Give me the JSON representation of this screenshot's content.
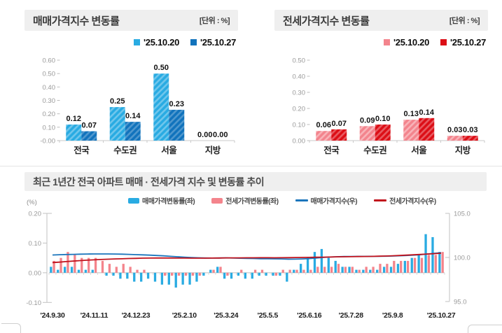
{
  "panels": {
    "sale": {
      "title": "매매가격지수 변동률",
      "unit": "[단위 : %]",
      "legend": [
        "'25.10.20",
        "'25.10.27"
      ]
    },
    "jeonse": {
      "title": "전세가격지수 변동률",
      "unit": "[단위 : %]",
      "legend": [
        "'25.10.20",
        "'25.10.27"
      ]
    },
    "trend": {
      "title": "최근 1년간 전국 아파트 매매 · 전세가격 지수 및 변동률 추이",
      "left_unit": "(%)",
      "legend": [
        "매매가격변동률(좌)",
        "전세가격변동률(좌)",
        "매매가격지수(우)",
        "전세가격지수(우)"
      ]
    }
  },
  "colors": {
    "header_bg": "#EFEFEF",
    "sale_prev": "#29ABE2",
    "sale_prev_hatch": "#6FC6EC",
    "sale_curr": "#1173BC",
    "sale_curr_hatch": "#4E97CE",
    "jeonse_prev": "#F3848D",
    "jeonse_prev_hatch": "#F8B3B8",
    "jeonse_curr": "#DC0E16",
    "jeonse_curr_hatch": "#E85A60",
    "sale_bar": "#29ABE2",
    "jeonse_bar": "#F4848C",
    "sale_line": "#1B75BC",
    "jeonse_line": "#C1121C"
  },
  "chart_data": [
    {
      "type": "bar",
      "title": "매매가격지수 변동률",
      "unit": "[단위 : %]",
      "categories": [
        "전국",
        "수도권",
        "서울",
        "지방"
      ],
      "series": [
        {
          "name": "'25.10.20",
          "values": [
            0.12,
            0.25,
            0.5,
            0.0
          ],
          "color": "#29ABE2",
          "hatch": "#6FC6EC"
        },
        {
          "name": "'25.10.27",
          "values": [
            0.07,
            0.14,
            0.23,
            0.0
          ],
          "color": "#1173BC",
          "hatch": "#4E97CE"
        }
      ],
      "ylim": [
        0,
        0.6
      ],
      "ytick_step": 0.1,
      "grid": false,
      "legend_position": "top-right"
    },
    {
      "type": "bar",
      "title": "전세가격지수 변동률",
      "unit": "[단위 : %]",
      "categories": [
        "전국",
        "수도권",
        "서울",
        "지방"
      ],
      "series": [
        {
          "name": "'25.10.20",
          "values": [
            0.06,
            0.09,
            0.13,
            0.03
          ],
          "color": "#F3848D",
          "hatch": "#F8B3B8"
        },
        {
          "name": "'25.10.27",
          "values": [
            0.07,
            0.1,
            0.14,
            0.03
          ],
          "color": "#DC0E16",
          "hatch": "#E85A60"
        }
      ],
      "ylim": [
        0,
        0.5
      ],
      "ytick_step": 0.1,
      "grid": false,
      "legend_position": "top-right"
    },
    {
      "type": "combo",
      "title": "최근 1년간 전국 아파트 매매 · 전세가격 지수 및 변동률 추이",
      "weeks": 57,
      "x_labels": [
        {
          "week": 0,
          "label": "'24.9.30"
        },
        {
          "week": 6,
          "label": "'24.11.11"
        },
        {
          "week": 12,
          "label": "'24.12.23"
        },
        {
          "week": 19,
          "label": "'25.2.10"
        },
        {
          "week": 25,
          "label": "'25.3.24"
        },
        {
          "week": 31,
          "label": "'25.5.5"
        },
        {
          "week": 37,
          "label": "'25.6.16"
        },
        {
          "week": 43,
          "label": "'25.7.28"
        },
        {
          "week": 49,
          "label": "'25.9.8"
        },
        {
          "week": 56,
          "label": "'25.10.27"
        }
      ],
      "left_axis": {
        "label": "(%)",
        "min": -0.1,
        "max": 0.2,
        "step": 0.1
      },
      "right_axis": {
        "min": 95.0,
        "max": 105.0,
        "step": 5.0
      },
      "bar_series": [
        {
          "name": "매매가격변동률(좌)",
          "axis": "left",
          "color": "#29ABE2",
          "values": [
            0.02,
            0.01,
            0.02,
            0.02,
            0.01,
            0.01,
            0.01,
            0.0,
            -0.01,
            -0.01,
            -0.02,
            -0.02,
            -0.03,
            -0.03,
            -0.02,
            -0.03,
            -0.04,
            -0.04,
            -0.05,
            -0.04,
            -0.04,
            -0.03,
            -0.01,
            0.01,
            0.02,
            -0.02,
            -0.02,
            -0.01,
            -0.02,
            -0.02,
            -0.01,
            -0.01,
            -0.01,
            -0.01,
            -0.03,
            0.01,
            0.03,
            0.05,
            0.07,
            0.08,
            0.05,
            0.04,
            0.02,
            0.02,
            0.01,
            0.01,
            0.01,
            0.01,
            0.02,
            0.02,
            0.03,
            0.04,
            0.05,
            0.06,
            0.13,
            0.12,
            0.07
          ]
        },
        {
          "name": "전세가격변동률(좌)",
          "axis": "left",
          "color": "#F4848C",
          "values": [
            0.04,
            0.05,
            0.07,
            0.06,
            0.05,
            0.05,
            0.05,
            0.04,
            0.03,
            0.02,
            0.03,
            0.02,
            0.01,
            0.01,
            0.0,
            0.0,
            -0.01,
            -0.01,
            -0.01,
            -0.01,
            -0.01,
            -0.01,
            0.0,
            0.01,
            0.02,
            -0.01,
            0.0,
            0.01,
            0.0,
            0.01,
            0.01,
            0.0,
            -0.01,
            0.01,
            0.01,
            0.01,
            0.01,
            0.01,
            0.02,
            0.02,
            0.02,
            0.03,
            0.02,
            0.02,
            0.01,
            0.02,
            0.02,
            0.03,
            0.03,
            0.04,
            0.04,
            0.04,
            0.05,
            0.05,
            0.06,
            0.06,
            0.07
          ]
        }
      ],
      "line_series": [
        {
          "name": "매매가격지수(우)",
          "axis": "right",
          "color": "#1B75BC",
          "values": [
            100.28,
            100.31,
            100.33,
            100.35,
            100.37,
            100.39,
            100.4,
            100.4,
            100.4,
            100.39,
            100.37,
            100.35,
            100.32,
            100.29,
            100.26,
            100.22,
            100.18,
            100.13,
            100.08,
            100.03,
            99.99,
            99.96,
            99.94,
            99.93,
            99.94,
            99.95,
            99.93,
            99.91,
            99.9,
            99.88,
            99.86,
            99.85,
            99.84,
            99.83,
            99.8,
            99.81,
            99.83,
            99.87,
            99.93,
            100.0,
            100.05,
            100.08,
            100.1,
            100.11,
            100.12,
            100.12,
            100.13,
            100.13,
            100.14,
            100.16,
            100.19,
            100.22,
            100.26,
            100.31,
            100.39,
            100.47,
            100.53
          ]
        },
        {
          "name": "전세가격지수(우)",
          "axis": "right",
          "color": "#C1121C",
          "values": [
            99.42,
            99.47,
            99.53,
            99.59,
            99.64,
            99.69,
            99.73,
            99.77,
            99.8,
            99.83,
            99.85,
            99.88,
            99.9,
            99.92,
            99.93,
            99.94,
            99.94,
            99.94,
            99.93,
            99.93,
            99.92,
            99.92,
            99.92,
            99.93,
            99.94,
            99.95,
            99.95,
            99.95,
            99.96,
            99.96,
            99.97,
            99.97,
            99.96,
            99.97,
            99.98,
            99.99,
            100.0,
            100.01,
            100.02,
            100.03,
            100.05,
            100.07,
            100.08,
            100.09,
            100.1,
            100.11,
            100.12,
            100.14,
            100.16,
            100.19,
            100.22,
            100.26,
            100.3,
            100.34,
            100.39,
            100.43,
            100.48
          ]
        }
      ]
    }
  ]
}
